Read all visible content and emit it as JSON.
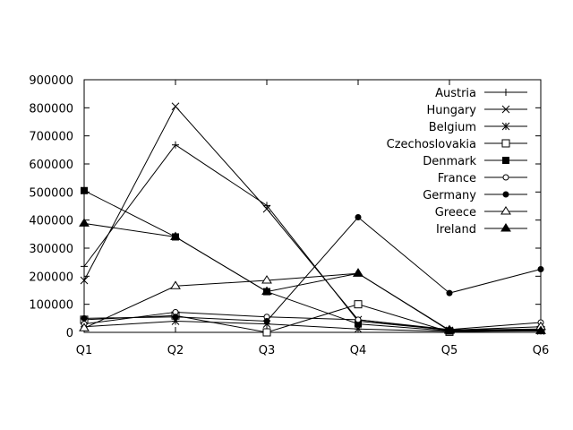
{
  "chart_data": {
    "type": "line",
    "title": "",
    "xlabel": "",
    "ylabel": "",
    "categories": [
      "Q1",
      "Q2",
      "Q3",
      "Q4",
      "Q5",
      "Q6"
    ],
    "ylim": [
      0,
      900000
    ],
    "yticks": [
      0,
      100000,
      200000,
      300000,
      400000,
      500000,
      600000,
      700000,
      800000,
      900000
    ],
    "grid": false,
    "legend_position": "top-right",
    "line_color": "#000000",
    "series": [
      {
        "name": "Austria",
        "marker": "plus",
        "values": [
          235000,
          668000,
          452000,
          40000,
          8000,
          12000
        ]
      },
      {
        "name": "Hungary",
        "marker": "cross",
        "values": [
          185000,
          805000,
          440000,
          45000,
          7000,
          10000
        ]
      },
      {
        "name": "Belgium",
        "marker": "star",
        "values": [
          20000,
          40000,
          30000,
          12000,
          3000,
          5000
        ]
      },
      {
        "name": "Czechoslovakia",
        "marker": "square-open",
        "values": [
          45000,
          60000,
          0,
          100000,
          2000,
          8000
        ]
      },
      {
        "name": "Denmark",
        "marker": "square-filled",
        "values": [
          505000,
          340000,
          145000,
          30000,
          5000,
          6000
        ]
      },
      {
        "name": "France",
        "marker": "circle-open",
        "values": [
          30000,
          72000,
          55000,
          45000,
          10000,
          35000
        ]
      },
      {
        "name": "Germany",
        "marker": "circle-filled",
        "values": [
          50000,
          55000,
          40000,
          410000,
          140000,
          225000
        ]
      },
      {
        "name": "Greece",
        "marker": "triangle-open",
        "values": [
          15000,
          165000,
          185000,
          210000,
          8000,
          20000
        ]
      },
      {
        "name": "Ireland",
        "marker": "triangle-filled",
        "values": [
          388000,
          340000,
          145000,
          210000,
          6000,
          5000
        ]
      }
    ]
  }
}
